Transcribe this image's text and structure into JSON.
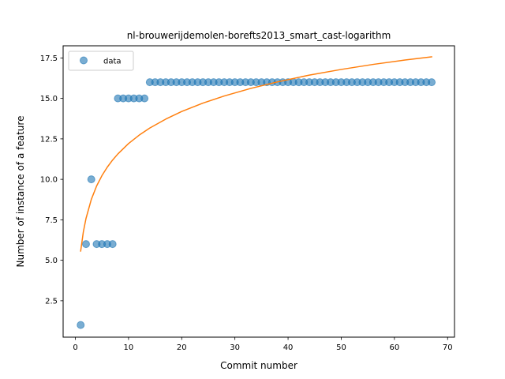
{
  "chart_data": {
    "type": "scatter",
    "title": "nl-brouwerijdemolen-borefts2013_smart_cast-logarithm",
    "xlabel": "Commit number",
    "ylabel": "Number of instance of a feature",
    "xlim": [
      -2.3,
      71.3
    ],
    "ylim": [
      0.25,
      18.25
    ],
    "xticks": [
      0,
      10,
      20,
      30,
      40,
      50,
      60,
      70
    ],
    "yticks": [
      2.5,
      5.0,
      7.5,
      10.0,
      12.5,
      15.0,
      17.5
    ],
    "xtick_labels": [
      "0",
      "10",
      "20",
      "30",
      "40",
      "50",
      "60",
      "70"
    ],
    "ytick_labels": [
      "2.5",
      "5.0",
      "7.5",
      "10.0",
      "12.5",
      "15.0",
      "17.5"
    ],
    "grid": false,
    "legend_position": "top-left",
    "legend": [
      "data"
    ],
    "series": [
      {
        "name": "data",
        "kind": "scatter",
        "color": "#1f77b4",
        "x": [
          1,
          2,
          3,
          4,
          5,
          6,
          7,
          8,
          9,
          10,
          11,
          12,
          13,
          14,
          15,
          16,
          17,
          18,
          19,
          20,
          21,
          22,
          23,
          24,
          25,
          26,
          27,
          28,
          29,
          30,
          31,
          32,
          33,
          34,
          35,
          36,
          37,
          38,
          39,
          40,
          41,
          42,
          43,
          44,
          45,
          46,
          47,
          48,
          49,
          50,
          51,
          52,
          53,
          54,
          55,
          56,
          57,
          58,
          59,
          60,
          61,
          62,
          63,
          64,
          65,
          66,
          67
        ],
        "y": [
          1,
          6,
          10,
          6,
          6,
          6,
          6,
          15,
          15,
          15,
          15,
          15,
          15,
          16,
          16,
          16,
          16,
          16,
          16,
          16,
          16,
          16,
          16,
          16,
          16,
          16,
          16,
          16,
          16,
          16,
          16,
          16,
          16,
          16,
          16,
          16,
          16,
          16,
          16,
          16,
          16,
          16,
          16,
          16,
          16,
          16,
          16,
          16,
          16,
          16,
          16,
          16,
          16,
          16,
          16,
          16,
          16,
          16,
          16,
          16,
          16,
          16,
          16,
          16,
          16,
          16,
          16
        ]
      },
      {
        "kind": "line",
        "color": "#ff7f0e",
        "x": [
          1,
          1.5,
          2,
          3,
          4,
          5,
          6,
          7,
          8,
          10,
          12,
          14,
          17,
          20,
          24,
          28,
          33,
          38,
          44,
          50,
          56,
          62,
          67
        ],
        "y": [
          5.57,
          6.75,
          7.58,
          8.76,
          9.59,
          10.23,
          10.75,
          11.19,
          11.57,
          12.21,
          12.73,
          13.17,
          13.72,
          14.19,
          14.71,
          15.15,
          15.62,
          16.02,
          16.44,
          16.79,
          17.1,
          17.37,
          17.57
        ]
      }
    ]
  }
}
